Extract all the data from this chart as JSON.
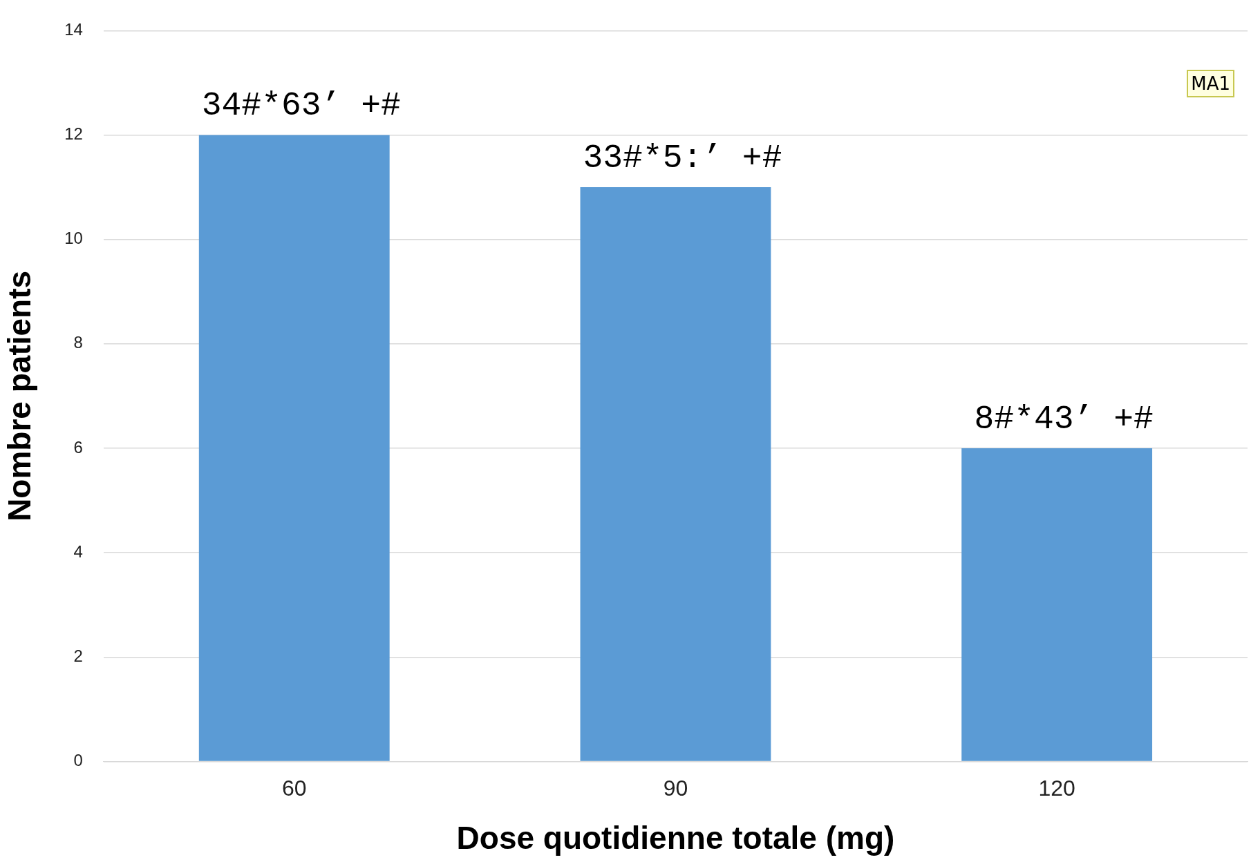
{
  "chart_data": {
    "type": "bar",
    "xlabel": "Dose quotidienne totale (mg)",
    "ylabel": "Nombre patients",
    "categories": [
      "60",
      "90",
      "120"
    ],
    "values": [
      12,
      11,
      6
    ],
    "color": "#5b9bd5",
    "ylim": [
      0,
      14
    ],
    "yticks": [
      0,
      2,
      4,
      6,
      8,
      10,
      12,
      14
    ],
    "grid": "y",
    "legend": false,
    "annotations": [
      {
        "text": "34#*63’ +#",
        "x": "60",
        "y": 12
      },
      {
        "text": "33#*5:’ +#",
        "x": "90",
        "y": 11
      },
      {
        "text": "8#*43’ +#",
        "x": "120",
        "y": 6
      },
      "MA1"
    ]
  }
}
